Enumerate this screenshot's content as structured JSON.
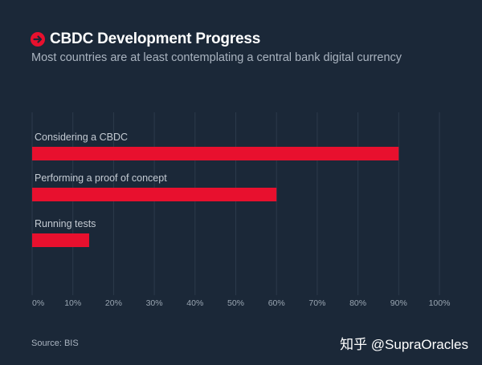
{
  "header": {
    "title": "CBDC Development Progress",
    "subtitle": "Most countries are at least contemplating a central bank digital currency",
    "icon": "arrow-right-circle-icon"
  },
  "footer": {
    "source": "Source: BIS",
    "watermark": "知乎 @SupraOracles"
  },
  "colors": {
    "background": "#1b2838",
    "bar": "#e8102e",
    "grid": "#2c3a4b",
    "label": "#c4cbd3",
    "tick": "#9aa6b2"
  },
  "chart_data": {
    "type": "bar",
    "orientation": "horizontal",
    "categories": [
      "Considering a CBDC",
      "Performing a proof of concept",
      "Running tests"
    ],
    "values": [
      90,
      60,
      14
    ],
    "xlim": [
      0,
      100
    ],
    "x_ticks": [
      0,
      10,
      20,
      30,
      40,
      50,
      60,
      70,
      80,
      90,
      100
    ],
    "x_tick_labels": [
      "0%",
      "10%",
      "20%",
      "30%",
      "40%",
      "50%",
      "60%",
      "70%",
      "80%",
      "90%",
      "100%"
    ],
    "grid": true
  }
}
